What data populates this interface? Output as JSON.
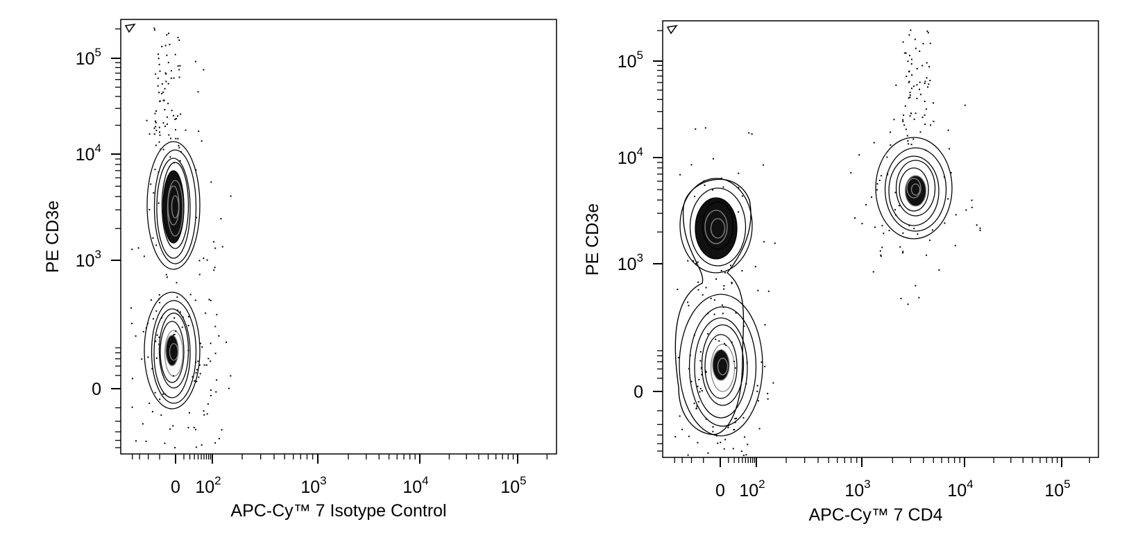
{
  "chart_data": [
    {
      "type": "contour",
      "xlabel": "APC-Cy™ 7 Isotype Control",
      "ylabel": "PE CD3e",
      "x_scale": "biexponential",
      "y_scale": "biexponential",
      "xlim": [
        -50,
        250000
      ],
      "ylim": [
        -60,
        250000
      ],
      "x_ticks": [
        {
          "value": 0,
          "label": "0"
        },
        {
          "value": 100,
          "base": "10",
          "exp": "2"
        },
        {
          "value": 1000,
          "base": "10",
          "exp": "3"
        },
        {
          "value": 10000,
          "base": "10",
          "exp": "4"
        },
        {
          "value": 100000,
          "base": "10",
          "exp": "5"
        }
      ],
      "y_ticks": [
        {
          "value": 0,
          "label": "0"
        },
        {
          "value": 1000,
          "base": "10",
          "exp": "3"
        },
        {
          "value": 10000,
          "base": "10",
          "exp": "4"
        },
        {
          "value": 100000,
          "base": "10",
          "exp": "5"
        }
      ],
      "populations": [
        {
          "x": 0,
          "y": 2500,
          "x_spread": "narrow",
          "y_spread": "wide",
          "density": "high"
        },
        {
          "x": 0,
          "y": 0,
          "x_spread": "narrow",
          "y_spread": "medium",
          "density": "very high"
        }
      ],
      "grid": false,
      "legend": "none"
    },
    {
      "type": "contour",
      "xlabel": "APC-Cy™ 7 CD4",
      "ylabel": "PE CD3e",
      "x_scale": "biexponential",
      "y_scale": "biexponential",
      "xlim": [
        -50,
        250000
      ],
      "ylim": [
        -60,
        250000
      ],
      "x_ticks": [
        {
          "value": 0,
          "label": "0"
        },
        {
          "value": 100,
          "base": "10",
          "exp": "2"
        },
        {
          "value": 1000,
          "base": "10",
          "exp": "3"
        },
        {
          "value": 10000,
          "base": "10",
          "exp": "4"
        },
        {
          "value": 100000,
          "base": "10",
          "exp": "5"
        }
      ],
      "y_ticks": [
        {
          "value": 0,
          "label": "0"
        },
        {
          "value": 1000,
          "base": "10",
          "exp": "3"
        },
        {
          "value": 10000,
          "base": "10",
          "exp": "4"
        },
        {
          "value": 100000,
          "base": "10",
          "exp": "5"
        }
      ],
      "populations": [
        {
          "x": 0,
          "y": 2000,
          "x_spread": "narrow",
          "y_spread": "medium",
          "density": "medium"
        },
        {
          "x": 0,
          "y": 0,
          "x_spread": "narrow",
          "y_spread": "medium",
          "density": "very high"
        },
        {
          "x": 3500,
          "y": 5500,
          "x_spread": "medium",
          "y_spread": "medium",
          "density": "high"
        }
      ],
      "grid": false,
      "legend": "none"
    }
  ]
}
